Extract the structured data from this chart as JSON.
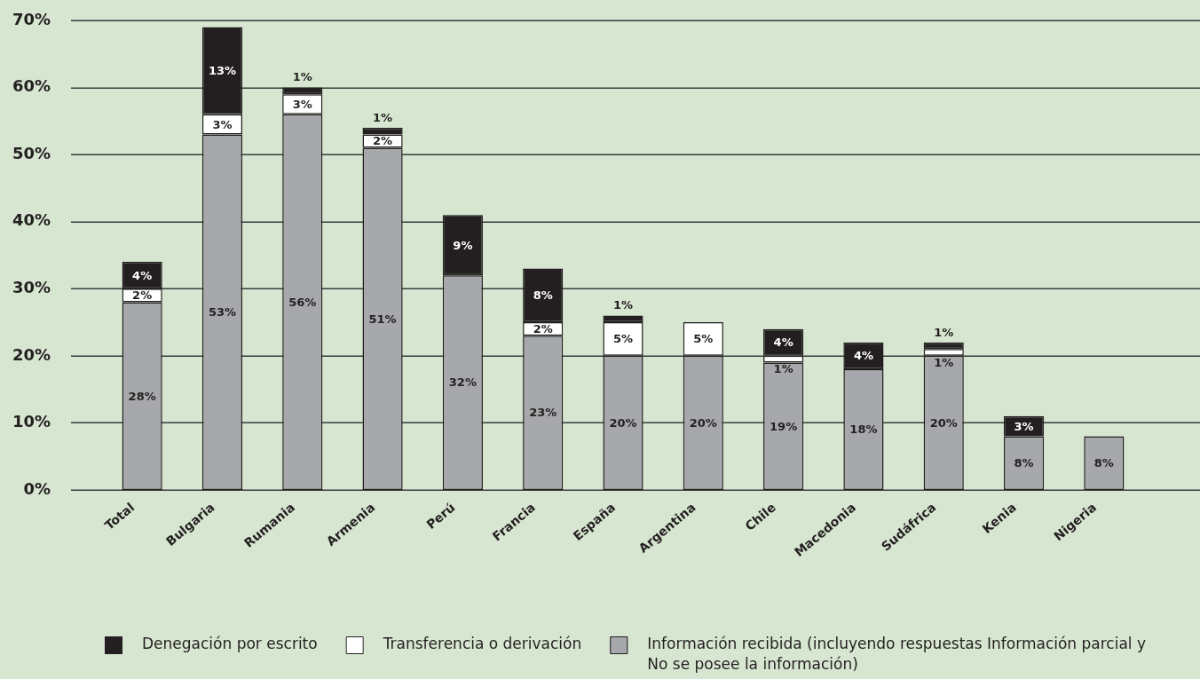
{
  "chart_data": {
    "type": "bar",
    "stacked": true,
    "categories": [
      "Total",
      "Bulgaria",
      "Rumania",
      "Armenia",
      "Perú",
      "Francia",
      "España",
      "Argentina",
      "Chile",
      "Macedonia",
      "Sudáfrica",
      "Kenia",
      "Nigeria"
    ],
    "series": [
      {
        "name": "Información recibida (incluyendo respuestas Información parcial y No se posee la información)",
        "color": "#a7a8ab",
        "values": [
          28,
          53,
          56,
          51,
          32,
          23,
          20,
          20,
          19,
          18,
          20,
          8,
          8
        ],
        "value_labels": [
          "28%",
          "53%",
          "56%",
          "51%",
          "32%",
          "23%",
          "20%",
          "20%",
          "19%",
          "18%",
          "20%",
          "8%",
          "8%"
        ]
      },
      {
        "name": "Transferencia o derivación",
        "color": "#ffffff",
        "values": [
          2,
          3,
          3,
          2,
          null,
          2,
          5,
          5,
          1,
          null,
          1,
          null,
          null
        ],
        "value_labels": [
          "2%",
          "3%",
          "3%",
          "2%",
          null,
          "2%",
          "5%",
          "5%",
          "1%",
          null,
          "1%",
          null,
          null
        ]
      },
      {
        "name": "Denegación por escrito",
        "color": "#231f20",
        "values": [
          4,
          13,
          1,
          1,
          9,
          8,
          1,
          null,
          4,
          4,
          1,
          3,
          null
        ],
        "value_labels": [
          "4%",
          "13%",
          "1%",
          "1%",
          "9%",
          "8%",
          "1%",
          null,
          "4%",
          "4%",
          "1%",
          "3%",
          null
        ]
      }
    ],
    "ylim": [
      0,
      70
    ],
    "yticks": [
      {
        "value": 0,
        "label": "0%"
      },
      {
        "value": 10,
        "label": "10%"
      },
      {
        "value": 20,
        "label": "20%"
      },
      {
        "value": 30,
        "label": "30%"
      },
      {
        "value": 40,
        "label": "40%"
      },
      {
        "value": 50,
        "label": "50%"
      },
      {
        "value": 60,
        "label": "60%"
      },
      {
        "value": 70,
        "label": "70%"
      }
    ],
    "grid": "y",
    "legend": "bottom"
  }
}
